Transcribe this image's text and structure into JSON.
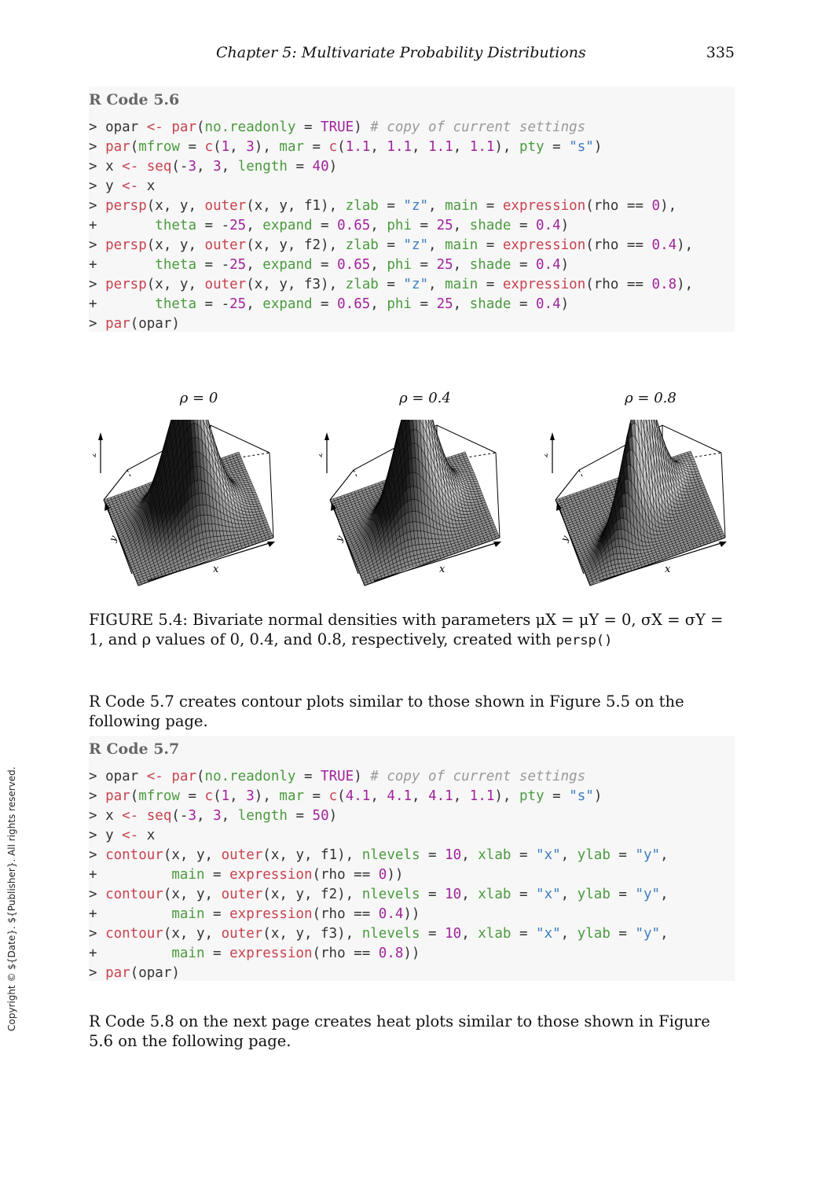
{
  "header": {
    "chapter": "Chapter  5:   Multivariate Probability Distributions",
    "page_number": "335"
  },
  "code56": {
    "title": "R Code 5.6",
    "lines": [
      [
        [
          "p",
          "> opar "
        ],
        [
          "op",
          "<- "
        ],
        [
          "fn",
          "par"
        ],
        [
          "p",
          "("
        ],
        [
          "arg",
          "no.readonly"
        ],
        [
          "p",
          " = "
        ],
        [
          "bool",
          "TRUE"
        ],
        [
          "p",
          ") "
        ],
        [
          "com",
          "# copy of current settings"
        ]
      ],
      [
        [
          "p",
          "> "
        ],
        [
          "fn",
          "par"
        ],
        [
          "p",
          "("
        ],
        [
          "arg",
          "mfrow"
        ],
        [
          "p",
          " = "
        ],
        [
          "fn",
          "c"
        ],
        [
          "p",
          "("
        ],
        [
          "num",
          "1"
        ],
        [
          "p",
          ", "
        ],
        [
          "num",
          "3"
        ],
        [
          "p",
          "), "
        ],
        [
          "arg",
          "mar"
        ],
        [
          "p",
          " = "
        ],
        [
          "fn",
          "c"
        ],
        [
          "p",
          "("
        ],
        [
          "num",
          "1.1"
        ],
        [
          "p",
          ", "
        ],
        [
          "num",
          "1.1"
        ],
        [
          "p",
          ", "
        ],
        [
          "num",
          "1.1"
        ],
        [
          "p",
          ", "
        ],
        [
          "num",
          "1.1"
        ],
        [
          "p",
          "), "
        ],
        [
          "arg",
          "pty"
        ],
        [
          "p",
          " = "
        ],
        [
          "str",
          "\"s\""
        ],
        [
          "p",
          ")"
        ]
      ],
      [
        [
          "p",
          "> x "
        ],
        [
          "op",
          "<- "
        ],
        [
          "fn",
          "seq"
        ],
        [
          "p",
          "(-"
        ],
        [
          "num",
          "3"
        ],
        [
          "p",
          ", "
        ],
        [
          "num",
          "3"
        ],
        [
          "p",
          ", "
        ],
        [
          "arg",
          "length"
        ],
        [
          "p",
          " = "
        ],
        [
          "num",
          "40"
        ],
        [
          "p",
          ")"
        ]
      ],
      [
        [
          "p",
          "> y "
        ],
        [
          "op",
          "<- "
        ],
        [
          "p",
          "x"
        ]
      ],
      [
        [
          "p",
          "> "
        ],
        [
          "fn",
          "persp"
        ],
        [
          "p",
          "(x, y, "
        ],
        [
          "fn",
          "outer"
        ],
        [
          "p",
          "(x, y, f1), "
        ],
        [
          "arg",
          "zlab"
        ],
        [
          "p",
          " = "
        ],
        [
          "str",
          "\"z\""
        ],
        [
          "p",
          ", "
        ],
        [
          "arg",
          "main"
        ],
        [
          "p",
          " = "
        ],
        [
          "fn",
          "expression"
        ],
        [
          "p",
          "(rho == "
        ],
        [
          "num",
          "0"
        ],
        [
          "p",
          "),"
        ]
      ],
      [
        [
          "p",
          "+       "
        ],
        [
          "arg",
          "theta"
        ],
        [
          "p",
          " = -"
        ],
        [
          "num",
          "25"
        ],
        [
          "p",
          ", "
        ],
        [
          "arg",
          "expand"
        ],
        [
          "p",
          " = "
        ],
        [
          "num",
          "0.65"
        ],
        [
          "p",
          ", "
        ],
        [
          "arg",
          "phi"
        ],
        [
          "p",
          " = "
        ],
        [
          "num",
          "25"
        ],
        [
          "p",
          ", "
        ],
        [
          "arg",
          "shade"
        ],
        [
          "p",
          " = "
        ],
        [
          "num",
          "0.4"
        ],
        [
          "p",
          ")"
        ]
      ],
      [
        [
          "p",
          "> "
        ],
        [
          "fn",
          "persp"
        ],
        [
          "p",
          "(x, y, "
        ],
        [
          "fn",
          "outer"
        ],
        [
          "p",
          "(x, y, f2), "
        ],
        [
          "arg",
          "zlab"
        ],
        [
          "p",
          " = "
        ],
        [
          "str",
          "\"z\""
        ],
        [
          "p",
          ", "
        ],
        [
          "arg",
          "main"
        ],
        [
          "p",
          " = "
        ],
        [
          "fn",
          "expression"
        ],
        [
          "p",
          "(rho == "
        ],
        [
          "num",
          "0.4"
        ],
        [
          "p",
          "),"
        ]
      ],
      [
        [
          "p",
          "+       "
        ],
        [
          "arg",
          "theta"
        ],
        [
          "p",
          " = -"
        ],
        [
          "num",
          "25"
        ],
        [
          "p",
          ", "
        ],
        [
          "arg",
          "expand"
        ],
        [
          "p",
          " = "
        ],
        [
          "num",
          "0.65"
        ],
        [
          "p",
          ", "
        ],
        [
          "arg",
          "phi"
        ],
        [
          "p",
          " = "
        ],
        [
          "num",
          "25"
        ],
        [
          "p",
          ", "
        ],
        [
          "arg",
          "shade"
        ],
        [
          "p",
          " = "
        ],
        [
          "num",
          "0.4"
        ],
        [
          "p",
          ")"
        ]
      ],
      [
        [
          "p",
          "> "
        ],
        [
          "fn",
          "persp"
        ],
        [
          "p",
          "(x, y, "
        ],
        [
          "fn",
          "outer"
        ],
        [
          "p",
          "(x, y, f3), "
        ],
        [
          "arg",
          "zlab"
        ],
        [
          "p",
          " = "
        ],
        [
          "str",
          "\"z\""
        ],
        [
          "p",
          ", "
        ],
        [
          "arg",
          "main"
        ],
        [
          "p",
          " = "
        ],
        [
          "fn",
          "expression"
        ],
        [
          "p",
          "(rho == "
        ],
        [
          "num",
          "0.8"
        ],
        [
          "p",
          "),"
        ]
      ],
      [
        [
          "p",
          "+       "
        ],
        [
          "arg",
          "theta"
        ],
        [
          "p",
          " = -"
        ],
        [
          "num",
          "25"
        ],
        [
          "p",
          ", "
        ],
        [
          "arg",
          "expand"
        ],
        [
          "p",
          " = "
        ],
        [
          "num",
          "0.65"
        ],
        [
          "p",
          ", "
        ],
        [
          "arg",
          "phi"
        ],
        [
          "p",
          " = "
        ],
        [
          "num",
          "25"
        ],
        [
          "p",
          ", "
        ],
        [
          "arg",
          "shade"
        ],
        [
          "p",
          " = "
        ],
        [
          "num",
          "0.4"
        ],
        [
          "p",
          ")"
        ]
      ],
      [
        [
          "p",
          "> "
        ],
        [
          "fn",
          "par"
        ],
        [
          "p",
          "(opar)"
        ]
      ]
    ]
  },
  "figure": {
    "panels": [
      {
        "title": "ρ = 0",
        "rho": 0,
        "xlabel": "x",
        "ylabel": "y",
        "zlabel": "z"
      },
      {
        "title": "ρ = 0.4",
        "rho": 0.4,
        "xlabel": "x",
        "ylabel": "y",
        "zlabel": "z"
      },
      {
        "title": "ρ = 0.8",
        "rho": 0.8,
        "xlabel": "x",
        "ylabel": "y",
        "zlabel": "z"
      }
    ]
  },
  "caption": {
    "label": "FIGURE 5.4:",
    "text": " Bivariate normal densities with parameters μX = μY = 0, σX = σY = 1, and ρ values of 0, 0.4, and 0.8, respectively, created with ",
    "code": "persp()"
  },
  "para1": "R Code 5.7 creates contour plots similar to those shown in Figure 5.5 on the following page.",
  "code57": {
    "title": "R Code 5.7",
    "lines": [
      [
        [
          "p",
          "> opar "
        ],
        [
          "op",
          "<- "
        ],
        [
          "fn",
          "par"
        ],
        [
          "p",
          "("
        ],
        [
          "arg",
          "no.readonly"
        ],
        [
          "p",
          " = "
        ],
        [
          "bool",
          "TRUE"
        ],
        [
          "p",
          ") "
        ],
        [
          "com",
          "# copy of current settings"
        ]
      ],
      [
        [
          "p",
          "> "
        ],
        [
          "fn",
          "par"
        ],
        [
          "p",
          "("
        ],
        [
          "arg",
          "mfrow"
        ],
        [
          "p",
          " = "
        ],
        [
          "fn",
          "c"
        ],
        [
          "p",
          "("
        ],
        [
          "num",
          "1"
        ],
        [
          "p",
          ", "
        ],
        [
          "num",
          "3"
        ],
        [
          "p",
          "), "
        ],
        [
          "arg",
          "mar"
        ],
        [
          "p",
          " = "
        ],
        [
          "fn",
          "c"
        ],
        [
          "p",
          "("
        ],
        [
          "num",
          "4.1"
        ],
        [
          "p",
          ", "
        ],
        [
          "num",
          "4.1"
        ],
        [
          "p",
          ", "
        ],
        [
          "num",
          "4.1"
        ],
        [
          "p",
          ", "
        ],
        [
          "num",
          "1.1"
        ],
        [
          "p",
          "), "
        ],
        [
          "arg",
          "pty"
        ],
        [
          "p",
          " = "
        ],
        [
          "str",
          "\"s\""
        ],
        [
          "p",
          ")"
        ]
      ],
      [
        [
          "p",
          "> x "
        ],
        [
          "op",
          "<- "
        ],
        [
          "fn",
          "seq"
        ],
        [
          "p",
          "(-"
        ],
        [
          "num",
          "3"
        ],
        [
          "p",
          ", "
        ],
        [
          "num",
          "3"
        ],
        [
          "p",
          ", "
        ],
        [
          "arg",
          "length"
        ],
        [
          "p",
          " = "
        ],
        [
          "num",
          "50"
        ],
        [
          "p",
          ")"
        ]
      ],
      [
        [
          "p",
          "> y "
        ],
        [
          "op",
          "<- "
        ],
        [
          "p",
          "x"
        ]
      ],
      [
        [
          "p",
          "> "
        ],
        [
          "fn",
          "contour"
        ],
        [
          "p",
          "(x, y, "
        ],
        [
          "fn",
          "outer"
        ],
        [
          "p",
          "(x, y, f1), "
        ],
        [
          "arg",
          "nlevels"
        ],
        [
          "p",
          " = "
        ],
        [
          "num",
          "10"
        ],
        [
          "p",
          ", "
        ],
        [
          "arg",
          "xlab"
        ],
        [
          "p",
          " = "
        ],
        [
          "str",
          "\"x\""
        ],
        [
          "p",
          ", "
        ],
        [
          "arg",
          "ylab"
        ],
        [
          "p",
          " = "
        ],
        [
          "str",
          "\"y\""
        ],
        [
          "p",
          ","
        ]
      ],
      [
        [
          "p",
          "+         "
        ],
        [
          "arg",
          "main"
        ],
        [
          "p",
          " = "
        ],
        [
          "fn",
          "expression"
        ],
        [
          "p",
          "(rho == "
        ],
        [
          "num",
          "0"
        ],
        [
          "p",
          "))"
        ]
      ],
      [
        [
          "p",
          "> "
        ],
        [
          "fn",
          "contour"
        ],
        [
          "p",
          "(x, y, "
        ],
        [
          "fn",
          "outer"
        ],
        [
          "p",
          "(x, y, f2), "
        ],
        [
          "arg",
          "nlevels"
        ],
        [
          "p",
          " = "
        ],
        [
          "num",
          "10"
        ],
        [
          "p",
          ", "
        ],
        [
          "arg",
          "xlab"
        ],
        [
          "p",
          " = "
        ],
        [
          "str",
          "\"x\""
        ],
        [
          "p",
          ", "
        ],
        [
          "arg",
          "ylab"
        ],
        [
          "p",
          " = "
        ],
        [
          "str",
          "\"y\""
        ],
        [
          "p",
          ","
        ]
      ],
      [
        [
          "p",
          "+         "
        ],
        [
          "arg",
          "main"
        ],
        [
          "p",
          " = "
        ],
        [
          "fn",
          "expression"
        ],
        [
          "p",
          "(rho == "
        ],
        [
          "num",
          "0.4"
        ],
        [
          "p",
          "))"
        ]
      ],
      [
        [
          "p",
          "> "
        ],
        [
          "fn",
          "contour"
        ],
        [
          "p",
          "(x, y, "
        ],
        [
          "fn",
          "outer"
        ],
        [
          "p",
          "(x, y, f3), "
        ],
        [
          "arg",
          "nlevels"
        ],
        [
          "p",
          " = "
        ],
        [
          "num",
          "10"
        ],
        [
          "p",
          ", "
        ],
        [
          "arg",
          "xlab"
        ],
        [
          "p",
          " = "
        ],
        [
          "str",
          "\"x\""
        ],
        [
          "p",
          ", "
        ],
        [
          "arg",
          "ylab"
        ],
        [
          "p",
          " = "
        ],
        [
          "str",
          "\"y\""
        ],
        [
          "p",
          ","
        ]
      ],
      [
        [
          "p",
          "+         "
        ],
        [
          "arg",
          "main"
        ],
        [
          "p",
          " = "
        ],
        [
          "fn",
          "expression"
        ],
        [
          "p",
          "(rho == "
        ],
        [
          "num",
          "0.8"
        ],
        [
          "p",
          "))"
        ]
      ],
      [
        [
          "p",
          "> "
        ],
        [
          "fn",
          "par"
        ],
        [
          "p",
          "(opar)"
        ]
      ]
    ]
  },
  "para2": "R Code 5.8 on the next page creates heat plots similar to those shown in Figure 5.6 on the following page.",
  "copyright": "Copyright © ${Date}. ${Publisher}. All rights reserved."
}
